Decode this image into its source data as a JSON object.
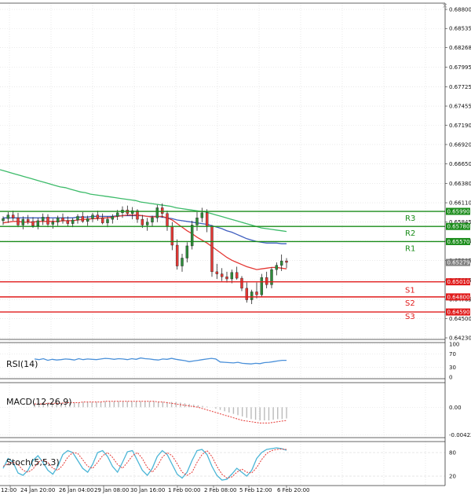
{
  "close_icon": "×",
  "colors": {
    "candle_up": "#2e8b3a",
    "candle_down": "#e53935",
    "sma_fast": "#e53935",
    "sma_mid": "#3f5fbf",
    "sma_slow": "#3dbb6a",
    "resistance": "#1a8c1a",
    "support": "#e01b1b",
    "current_badge": "#7f7f7f",
    "rsi_line": "#4a90d9",
    "macd_hist": "#bbbbbb",
    "macd_signal": "#e53935",
    "stoch_k": "#4ab5d6",
    "stoch_d": "#e53935"
  },
  "chart_data": {
    "type": "line",
    "instrument_panel": {
      "chart_type": "candlestick",
      "y_ticks": [
        "0.68800",
        "0.68535",
        "0.68268",
        "0.67995",
        "0.67725",
        "0.67455",
        "0.67190",
        "0.66920",
        "0.66650",
        "0.66380",
        "0.66110",
        "0.65845",
        "0.65575",
        "0.65305",
        "0.65035",
        "0.64765",
        "0.64500",
        "0.64230"
      ],
      "y_range": [
        0.6423,
        0.688
      ],
      "current_price": "0.65279",
      "levels": [
        {
          "name": "R3",
          "value": 0.6599,
          "label": "0.65990",
          "type": "resistance"
        },
        {
          "name": "R2",
          "value": 0.6578,
          "label": "0.65780",
          "type": "resistance"
        },
        {
          "name": "R1",
          "value": 0.6557,
          "label": "0.65570",
          "type": "resistance"
        },
        {
          "name": "",
          "value": 0.6501,
          "label": "0.65010",
          "type": "support"
        },
        {
          "name": "S1",
          "value": 0.648,
          "label": "0.64800",
          "type": "support"
        },
        {
          "name": "S2",
          "value": 0.6459,
          "label": "0.64590",
          "type": "support"
        },
        {
          "name": "S3",
          "value": 0.6459,
          "label": "",
          "type": "support"
        }
      ],
      "x_labels": [
        "12:00",
        "24 Jan 20:00",
        "26 Jan 04:00",
        "29 Jan 08:00",
        "30 Jan 16:00",
        "1 Feb 00:00",
        "2 Feb 08:00",
        "5 Feb 12:00",
        "6 Feb 20:00"
      ],
      "candles": [
        [
          0.6586,
          0.6592,
          0.658,
          0.6589
        ],
        [
          0.6589,
          0.6598,
          0.6583,
          0.6594
        ],
        [
          0.6594,
          0.66,
          0.6586,
          0.659
        ],
        [
          0.659,
          0.6597,
          0.6577,
          0.658
        ],
        [
          0.658,
          0.6592,
          0.6574,
          0.6588
        ],
        [
          0.6588,
          0.6594,
          0.6581,
          0.6585
        ],
        [
          0.6585,
          0.6591,
          0.6576,
          0.6579
        ],
        [
          0.6579,
          0.659,
          0.6574,
          0.6586
        ],
        [
          0.6586,
          0.6596,
          0.658,
          0.6591
        ],
        [
          0.6591,
          0.6595,
          0.6577,
          0.6581
        ],
        [
          0.6581,
          0.6589,
          0.6575,
          0.6584
        ],
        [
          0.6584,
          0.6593,
          0.6579,
          0.659
        ],
        [
          0.659,
          0.6596,
          0.6582,
          0.6586
        ],
        [
          0.6586,
          0.6592,
          0.6578,
          0.6582
        ],
        [
          0.6582,
          0.659,
          0.6577,
          0.6587
        ],
        [
          0.6587,
          0.6595,
          0.6582,
          0.6592
        ],
        [
          0.6592,
          0.6598,
          0.6583,
          0.6585
        ],
        [
          0.6585,
          0.6593,
          0.6579,
          0.6589
        ],
        [
          0.6589,
          0.6597,
          0.6584,
          0.6594
        ],
        [
          0.6594,
          0.66,
          0.6586,
          0.659
        ],
        [
          0.659,
          0.6596,
          0.6581,
          0.6583
        ],
        [
          0.6583,
          0.6592,
          0.6577,
          0.6588
        ],
        [
          0.6588,
          0.6595,
          0.6582,
          0.6592
        ],
        [
          0.6592,
          0.6601,
          0.6587,
          0.6597
        ],
        [
          0.6597,
          0.6606,
          0.659,
          0.6601
        ],
        [
          0.6601,
          0.6607,
          0.6593,
          0.6596
        ],
        [
          0.6596,
          0.6605,
          0.6588,
          0.66
        ],
        [
          0.66,
          0.6602,
          0.6583,
          0.6588
        ],
        [
          0.6588,
          0.6594,
          0.6576,
          0.658
        ],
        [
          0.658,
          0.659,
          0.6572,
          0.6584
        ],
        [
          0.6584,
          0.6593,
          0.6578,
          0.659
        ],
        [
          0.659,
          0.6608,
          0.6584,
          0.6604
        ],
        [
          0.6604,
          0.661,
          0.659,
          0.6596
        ],
        [
          0.6596,
          0.66,
          0.6572,
          0.6578
        ],
        [
          0.6578,
          0.6584,
          0.6545,
          0.6552
        ],
        [
          0.6552,
          0.656,
          0.6518,
          0.6523
        ],
        [
          0.6523,
          0.654,
          0.6515,
          0.6534
        ],
        [
          0.6534,
          0.6556,
          0.6528,
          0.6551
        ],
        [
          0.6551,
          0.6586,
          0.6546,
          0.658
        ],
        [
          0.658,
          0.6598,
          0.6572,
          0.659
        ],
        [
          0.659,
          0.6604,
          0.6584,
          0.6597
        ],
        [
          0.6597,
          0.6602,
          0.657,
          0.6578
        ],
        [
          0.6578,
          0.658,
          0.6508,
          0.6515
        ],
        [
          0.6515,
          0.6526,
          0.6505,
          0.6512
        ],
        [
          0.6512,
          0.652,
          0.6502,
          0.6508
        ],
        [
          0.6508,
          0.6515,
          0.65,
          0.6505
        ],
        [
          0.6505,
          0.6518,
          0.6499,
          0.6514
        ],
        [
          0.6514,
          0.6522,
          0.6504,
          0.6506
        ],
        [
          0.6506,
          0.6509,
          0.6488,
          0.6492
        ],
        [
          0.6492,
          0.65,
          0.6472,
          0.6476
        ],
        [
          0.6476,
          0.649,
          0.647,
          0.6487
        ],
        [
          0.6487,
          0.65,
          0.6478,
          0.6483
        ],
        [
          0.6483,
          0.6512,
          0.648,
          0.6507
        ],
        [
          0.6507,
          0.6515,
          0.6492,
          0.6497
        ],
        [
          0.6497,
          0.6521,
          0.6492,
          0.6518
        ],
        [
          0.6518,
          0.6528,
          0.651,
          0.6524
        ],
        [
          0.6524,
          0.6539,
          0.6516,
          0.653
        ],
        [
          0.653,
          0.6534,
          0.652,
          0.6528
        ]
      ],
      "sma_fast": [
        0.6583,
        0.6584,
        0.6585,
        0.6585,
        0.6584,
        0.6584,
        0.6584,
        0.6585,
        0.6585,
        0.6585,
        0.6585,
        0.6585,
        0.6586,
        0.6586,
        0.6586,
        0.6587,
        0.6588,
        0.6588,
        0.6589,
        0.6589,
        0.659,
        0.659,
        0.6591,
        0.6592,
        0.6593,
        0.6594,
        0.6594,
        0.6594,
        0.6593,
        0.6592,
        0.6591,
        0.6592,
        0.6592,
        0.659,
        0.6587,
        0.6582,
        0.6577,
        0.6572,
        0.6568,
        0.6563,
        0.6559,
        0.6555,
        0.655,
        0.6545,
        0.654,
        0.6535,
        0.6531,
        0.6528,
        0.6525,
        0.6522,
        0.652,
        0.6518,
        0.6519,
        0.652,
        0.6521,
        0.6521,
        0.652,
        0.6519
      ],
      "sma_mid": [
        0.659,
        0.659,
        0.659,
        0.659,
        0.659,
        0.659,
        0.659,
        0.659,
        0.659,
        0.659,
        0.659,
        0.659,
        0.659,
        0.659,
        0.659,
        0.6591,
        0.6591,
        0.6591,
        0.6592,
        0.6592,
        0.6592,
        0.6592,
        0.6592,
        0.6593,
        0.6593,
        0.6593,
        0.6593,
        0.6593,
        0.6593,
        0.6592,
        0.6592,
        0.6592,
        0.6591,
        0.659,
        0.6589,
        0.6587,
        0.6586,
        0.6585,
        0.6584,
        0.6583,
        0.6582,
        0.6581,
        0.6579,
        0.6577,
        0.6575,
        0.6572,
        0.657,
        0.6567,
        0.6564,
        0.6561,
        0.6559,
        0.6557,
        0.6556,
        0.6555,
        0.6555,
        0.6555,
        0.6554,
        0.6554
      ],
      "sma_slow": [
        0.6657,
        0.6655,
        0.6653,
        0.6651,
        0.6649,
        0.6647,
        0.6645,
        0.6643,
        0.6641,
        0.6639,
        0.6637,
        0.6635,
        0.6633,
        0.6632,
        0.663,
        0.6628,
        0.6626,
        0.6625,
        0.6623,
        0.6622,
        0.6621,
        0.662,
        0.6619,
        0.6618,
        0.6617,
        0.6616,
        0.6615,
        0.6614,
        0.6612,
        0.6611,
        0.661,
        0.6609,
        0.6608,
        0.6607,
        0.6606,
        0.6604,
        0.6603,
        0.6602,
        0.6601,
        0.66,
        0.6599,
        0.6598,
        0.6596,
        0.6594,
        0.6592,
        0.659,
        0.6588,
        0.6586,
        0.6584,
        0.6582,
        0.658,
        0.6578,
        0.6576,
        0.6575,
        0.6574,
        0.6573,
        0.6572,
        0.6571
      ]
    },
    "rsi_panel": {
      "title": "RSI(14)",
      "y_ticks": [
        "100",
        "70",
        "30",
        "0"
      ],
      "y_range": [
        0,
        100
      ],
      "values": [
        55,
        53,
        56,
        51,
        54,
        52,
        53,
        55,
        54,
        52,
        56,
        53,
        55,
        54,
        53,
        55,
        57,
        56,
        54,
        56,
        55,
        53,
        56,
        54,
        58,
        56,
        55,
        53,
        52,
        55,
        54,
        57,
        54,
        52,
        50,
        47,
        49,
        51,
        53,
        55,
        57,
        55,
        46,
        45,
        44,
        43,
        45,
        42,
        41,
        40,
        42,
        41,
        44,
        45,
        47,
        49,
        51,
        51
      ]
    },
    "macd_panel": {
      "title": "MACD(12,26,9)",
      "y_ticks": [
        "0.00",
        "-0.004226"
      ],
      "y_range": [
        -0.0045,
        0.0035
      ],
      "histogram": [
        0.0006,
        0.0006,
        0.0007,
        0.0007,
        0.0007,
        0.0007,
        0.0007,
        0.0007,
        0.0007,
        0.0007,
        0.0007,
        0.0008,
        0.0008,
        0.0008,
        0.0008,
        0.0008,
        0.0009,
        0.0009,
        0.0009,
        0.0009,
        0.0009,
        0.0009,
        0.0009,
        0.0009,
        0.0009,
        0.0009,
        0.0009,
        0.0009,
        0.0008,
        0.0008,
        0.0008,
        0.0008,
        0.0008,
        0.0007,
        0.0006,
        0.0005,
        0.0004,
        0.0003,
        0.0002,
        0.0001,
        0.0,
        -0.0002,
        -0.0004,
        -0.0006,
        -0.0008,
        -0.001,
        -0.0012,
        -0.0014,
        -0.0016,
        -0.0018,
        -0.0019,
        -0.002,
        -0.002,
        -0.002,
        -0.0019,
        -0.0018,
        -0.0018,
        -0.0017
      ],
      "signal": [
        0.0005,
        0.0005,
        0.0005,
        0.0006,
        0.0006,
        0.0006,
        0.0006,
        0.0007,
        0.0007,
        0.0007,
        0.0007,
        0.0008,
        0.0008,
        0.0008,
        0.0008,
        0.0008,
        0.0009,
        0.0009,
        0.0009,
        0.0009,
        0.0009,
        0.0009,
        0.0009,
        0.0009,
        0.0009,
        0.0009,
        0.0009,
        0.0009,
        0.0008,
        0.0008,
        0.0007,
        0.0006,
        0.0005,
        0.0004,
        0.0003,
        0.0002,
        0.0001,
        0.0,
        -0.0002,
        -0.0004,
        -0.0006,
        -0.0008,
        -0.001,
        -0.0012,
        -0.0014,
        -0.0016,
        -0.0018,
        -0.002,
        -0.0021,
        -0.0022,
        -0.0023,
        -0.0024,
        -0.0024,
        -0.0024,
        -0.0023,
        -0.0022,
        -0.0021,
        -0.002
      ]
    },
    "stoch_panel": {
      "title": "Stoch(5,5,3)",
      "y_ticks": [
        "80",
        "20"
      ],
      "y_range": [
        0,
        100
      ],
      "k": [
        40,
        65,
        55,
        28,
        22,
        35,
        60,
        72,
        55,
        35,
        25,
        45,
        75,
        85,
        80,
        60,
        40,
        30,
        50,
        80,
        85,
        70,
        45,
        30,
        55,
        82,
        85,
        60,
        35,
        22,
        40,
        70,
        85,
        75,
        50,
        25,
        15,
        30,
        60,
        85,
        88,
        75,
        45,
        22,
        10,
        12,
        25,
        40,
        30,
        20,
        35,
        65,
        80,
        88,
        90,
        92,
        90,
        86
      ],
      "d": [
        45,
        52,
        55,
        50,
        35,
        30,
        38,
        55,
        62,
        55,
        40,
        35,
        48,
        68,
        80,
        78,
        62,
        45,
        40,
        55,
        72,
        80,
        68,
        50,
        40,
        55,
        72,
        80,
        65,
        42,
        30,
        45,
        68,
        80,
        72,
        52,
        30,
        22,
        30,
        55,
        75,
        85,
        70,
        45,
        25,
        15,
        18,
        30,
        38,
        30,
        28,
        42,
        62,
        78,
        85,
        88,
        89,
        88
      ]
    }
  }
}
